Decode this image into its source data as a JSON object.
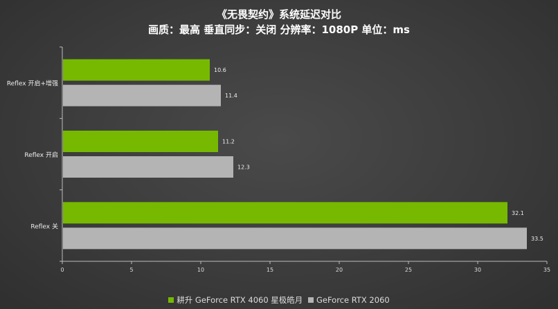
{
  "chart_data": {
    "type": "bar",
    "orientation": "horizontal",
    "title": "《无畏契约》系统延迟对比",
    "subtitle": "画质：最高 垂直同步：关闭 分辨率：1080P 单位：ms",
    "categories": [
      "Reflex 开启+增强",
      "Reflex 开启",
      "Reflex 关"
    ],
    "series": [
      {
        "name": "耕升 GeForce RTX 4060 星极皓月",
        "color": "#76b900",
        "values": [
          10.6,
          11.2,
          32.1
        ]
      },
      {
        "name": "GeForce RTX 2060",
        "color": "#b4b4b4",
        "values": [
          11.4,
          12.3,
          33.5
        ]
      }
    ],
    "xlim": [
      0,
      35
    ],
    "xticks": [
      "0",
      "5",
      "10",
      "15",
      "20",
      "25",
      "30",
      "35"
    ],
    "grid": false,
    "legend_position": "bottom"
  }
}
